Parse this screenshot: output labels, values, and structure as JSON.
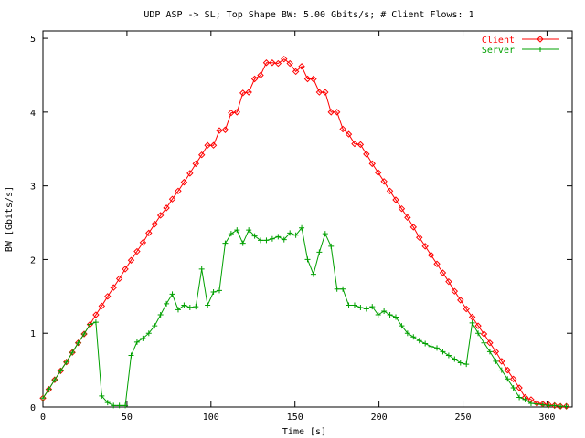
{
  "chart_data": {
    "type": "line",
    "title": "UDP ASP -> SL; Top Shape BW: 5.00 Gbits/s; # Client Flows: 1",
    "xlabel": "Time [s]",
    "ylabel": "BW [Gbits/s]",
    "xlim": [
      0,
      315
    ],
    "ylim": [
      0,
      5.1
    ],
    "xticks": [
      0,
      50,
      100,
      150,
      200,
      250,
      300
    ],
    "yticks": [
      0,
      1,
      2,
      3,
      4,
      5
    ],
    "xtick_labels": [
      "0",
      "50",
      "100",
      "150",
      "200",
      "250",
      "300"
    ],
    "ytick_labels": [
      "0",
      "1",
      "2",
      "3",
      "4",
      "5"
    ],
    "grid": false,
    "legend_position": "top-right",
    "series": [
      {
        "name": "Client",
        "color": "#ff0000",
        "marker": "diamond",
        "x": [
          0,
          3.5,
          7,
          10.5,
          14,
          17.5,
          21,
          24.5,
          28,
          31.5,
          35,
          38.5,
          42,
          45.5,
          49,
          52.5,
          56,
          59.5,
          63,
          66.5,
          70,
          73.5,
          77,
          80.5,
          84,
          87.5,
          91,
          94.5,
          98,
          101.5,
          105,
          108.5,
          112,
          115.5,
          119,
          122.5,
          126,
          129.5,
          133,
          136.5,
          140,
          143.5,
          147,
          150.5,
          154,
          157.5,
          161,
          164.5,
          168,
          171.5,
          175,
          178.5,
          182,
          185.5,
          189,
          192.5,
          196,
          199.5,
          203,
          206.5,
          210,
          213.5,
          217,
          220.5,
          224,
          227.5,
          231,
          234.5,
          238,
          241.5,
          245,
          248.5,
          252,
          255.5,
          259,
          262.5,
          266,
          269.5,
          273,
          276.5,
          280,
          283.5,
          287,
          290.5,
          294,
          297.5,
          301,
          304.5,
          308,
          311.5
        ],
        "y": [
          0.12,
          0.24,
          0.37,
          0.49,
          0.61,
          0.74,
          0.87,
          0.99,
          1.12,
          1.25,
          1.37,
          1.5,
          1.62,
          1.74,
          1.87,
          1.99,
          2.11,
          2.23,
          2.36,
          2.48,
          2.6,
          2.7,
          2.82,
          2.93,
          3.05,
          3.17,
          3.3,
          3.42,
          3.55,
          3.55,
          3.75,
          3.76,
          3.99,
          4.0,
          4.26,
          4.27,
          4.45,
          4.5,
          4.67,
          4.67,
          4.66,
          4.72,
          4.66,
          4.55,
          4.62,
          4.45,
          4.45,
          4.27,
          4.27,
          4.0,
          4.0,
          3.77,
          3.7,
          3.57,
          3.56,
          3.43,
          3.3,
          3.18,
          3.06,
          2.93,
          2.81,
          2.69,
          2.57,
          2.44,
          2.3,
          2.18,
          2.06,
          1.94,
          1.82,
          1.7,
          1.57,
          1.45,
          1.33,
          1.22,
          1.1,
          0.99,
          0.87,
          0.75,
          0.62,
          0.5,
          0.38,
          0.26,
          0.13,
          0.1,
          0.05,
          0.04,
          0.03,
          0.02,
          0.01,
          0.01
        ]
      },
      {
        "name": "Server",
        "color": "#00a000",
        "marker": "plus",
        "x": [
          0,
          3.5,
          7,
          10.5,
          14,
          17.5,
          21,
          24.5,
          28,
          31.5,
          35,
          38.5,
          42,
          45.5,
          49,
          52.5,
          56,
          59.5,
          63,
          66.5,
          70,
          73.5,
          77,
          80.5,
          84,
          87.5,
          91,
          94.5,
          98,
          101.5,
          105,
          108.5,
          112,
          115.5,
          119,
          122.5,
          126,
          129.5,
          133,
          136.5,
          140,
          143.5,
          147,
          150.5,
          154,
          157.5,
          161,
          164.5,
          168,
          171.5,
          175,
          178.5,
          182,
          185.5,
          189,
          192.5,
          196,
          199.5,
          203,
          206.5,
          210,
          213.5,
          217,
          220.5,
          224,
          227.5,
          231,
          234.5,
          238,
          241.5,
          245,
          248.5,
          252,
          255.5,
          259,
          262.5,
          266,
          269.5,
          273,
          276.5,
          280,
          283.5,
          287,
          290.5,
          294,
          297.5,
          301,
          304.5,
          308,
          311.5
        ],
        "y": [
          0.12,
          0.24,
          0.37,
          0.49,
          0.61,
          0.74,
          0.87,
          0.99,
          1.12,
          1.15,
          0.15,
          0.06,
          0.02,
          0.02,
          0.02,
          0.7,
          0.88,
          0.93,
          1.0,
          1.1,
          1.25,
          1.4,
          1.53,
          1.32,
          1.38,
          1.35,
          1.36,
          1.87,
          1.38,
          1.56,
          1.58,
          2.22,
          2.35,
          2.4,
          2.22,
          2.4,
          2.32,
          2.26,
          2.26,
          2.28,
          2.31,
          2.27,
          2.36,
          2.33,
          2.43,
          2.0,
          1.8,
          2.1,
          2.35,
          2.18,
          1.6,
          1.6,
          1.38,
          1.38,
          1.35,
          1.33,
          1.36,
          1.25,
          1.3,
          1.25,
          1.22,
          1.1,
          1.0,
          0.95,
          0.9,
          0.86,
          0.82,
          0.8,
          0.75,
          0.7,
          0.65,
          0.6,
          0.58,
          1.14,
          1.0,
          0.87,
          0.75,
          0.62,
          0.5,
          0.38,
          0.26,
          0.13,
          0.1,
          0.05,
          0.04,
          0.03,
          0.02,
          0.02,
          0.01,
          0.01
        ]
      }
    ]
  }
}
